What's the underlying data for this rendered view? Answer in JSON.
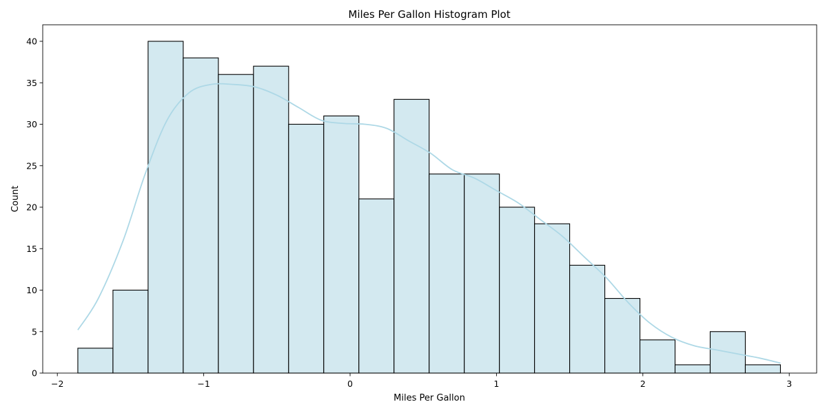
{
  "chart_data": {
    "type": "bar",
    "title": "Miles Per Gallon Histogram Plot",
    "xlabel": "Miles Per Gallon",
    "ylabel": "Count",
    "xlim": [
      -2.0,
      3.0
    ],
    "ylim": [
      0,
      42
    ],
    "x_ticks": [
      "−2",
      "−1",
      "0",
      "1",
      "2",
      "3"
    ],
    "y_ticks": [
      "0",
      "5",
      "10",
      "15",
      "20",
      "25",
      "30",
      "35",
      "40"
    ],
    "grid": false,
    "bins": {
      "edges": [
        -1.86,
        -1.62,
        -1.38,
        -1.14,
        -0.9,
        -0.66,
        -0.42,
        -0.18,
        0.06,
        0.3,
        0.54,
        0.78,
        1.02,
        1.26,
        1.5,
        1.74,
        1.98,
        2.22,
        2.46,
        2.7,
        2.94
      ],
      "counts": [
        3,
        10,
        40,
        38,
        36,
        37,
        30,
        31,
        21,
        33,
        24,
        24,
        20,
        18,
        13,
        9,
        4,
        1,
        5,
        1
      ]
    },
    "kde": {
      "x": [
        -1.86,
        -1.72,
        -1.55,
        -1.4,
        -1.25,
        -1.1,
        -0.95,
        -0.8,
        -0.65,
        -0.5,
        -0.35,
        -0.2,
        -0.05,
        0.1,
        0.25,
        0.4,
        0.55,
        0.7,
        0.85,
        1.0,
        1.15,
        1.3,
        1.45,
        1.6,
        1.75,
        1.9,
        2.05,
        2.2,
        2.35,
        2.5,
        2.65,
        2.8,
        2.94
      ],
      "y": [
        5.2,
        9.0,
        16.0,
        24.0,
        30.5,
        33.8,
        34.8,
        34.8,
        34.5,
        33.5,
        32.0,
        30.5,
        30.1,
        30.0,
        29.5,
        28.0,
        26.5,
        24.5,
        23.5,
        22.0,
        20.5,
        18.5,
        16.5,
        14.0,
        11.5,
        8.5,
        6.0,
        4.3,
        3.3,
        2.8,
        2.3,
        1.8,
        1.2
      ]
    }
  }
}
